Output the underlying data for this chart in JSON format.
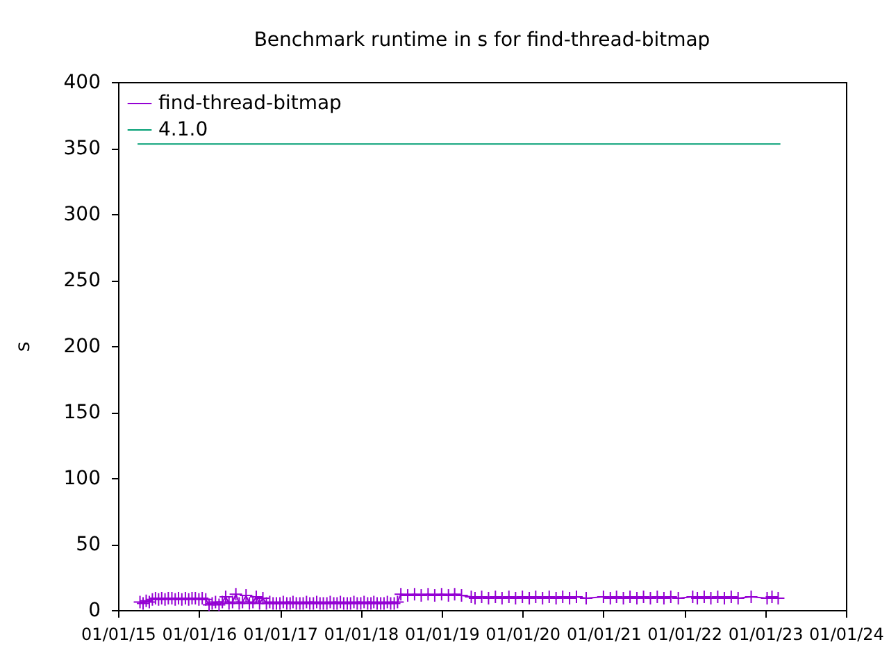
{
  "chart_data": {
    "type": "line",
    "title": "Benchmark runtime in s for find-thread-bitmap",
    "ylabel": "s",
    "legend": "top left",
    "grid": false,
    "xlim": [
      "2015-01-01",
      "2024-01-01"
    ],
    "xticks": [
      {
        "value": "2015-01-01",
        "label": "01/01/15"
      },
      {
        "value": "2016-01-01",
        "label": "01/01/16"
      },
      {
        "value": "2017-01-01",
        "label": "01/01/17"
      },
      {
        "value": "2018-01-01",
        "label": "01/01/18"
      },
      {
        "value": "2019-01-01",
        "label": "01/01/19"
      },
      {
        "value": "2020-01-01",
        "label": "01/01/20"
      },
      {
        "value": "2021-01-01",
        "label": "01/01/21"
      },
      {
        "value": "2022-01-01",
        "label": "01/01/22"
      },
      {
        "value": "2023-01-01",
        "label": "01/01/23"
      },
      {
        "value": "2024-01-01",
        "label": "01/01/24"
      }
    ],
    "ylim": [
      0,
      400
    ],
    "yticks": [
      0,
      50,
      100,
      150,
      200,
      250,
      300,
      350,
      400
    ],
    "series": [
      {
        "name": "find-thread-bitmap",
        "color": "#9400d3",
        "marker": "cross",
        "line_style": "solid",
        "x": [
          "2015-04-10",
          "2015-04-24",
          "2015-05-08",
          "2015-05-22",
          "2015-06-05",
          "2015-06-19",
          "2015-07-03",
          "2015-07-17",
          "2015-08-01",
          "2015-08-16",
          "2015-09-01",
          "2015-09-16",
          "2015-10-01",
          "2015-10-16",
          "2015-11-01",
          "2015-11-16",
          "2015-12-01",
          "2015-12-16",
          "2016-01-01",
          "2016-01-16",
          "2016-02-01",
          "2016-02-16",
          "2016-03-01",
          "2016-03-16",
          "2016-04-01",
          "2016-04-16",
          "2016-05-01",
          "2016-05-16",
          "2016-06-01",
          "2016-06-16",
          "2016-07-01",
          "2016-07-16",
          "2016-08-01",
          "2016-08-16",
          "2016-09-01",
          "2016-09-16",
          "2016-10-01",
          "2016-10-16",
          "2016-11-01",
          "2016-11-16",
          "2016-12-01",
          "2016-12-16",
          "2017-01-01",
          "2017-01-16",
          "2017-02-01",
          "2017-02-16",
          "2017-03-01",
          "2017-03-16",
          "2017-04-01",
          "2017-04-16",
          "2017-05-01",
          "2017-05-16",
          "2017-06-01",
          "2017-06-16",
          "2017-07-01",
          "2017-07-16",
          "2017-08-01",
          "2017-08-16",
          "2017-09-01",
          "2017-09-16",
          "2017-10-01",
          "2017-10-16",
          "2017-11-01",
          "2017-11-16",
          "2017-12-01",
          "2017-12-16",
          "2018-01-01",
          "2018-01-16",
          "2018-02-01",
          "2018-02-16",
          "2018-03-01",
          "2018-03-16",
          "2018-04-01",
          "2018-04-16",
          "2018-05-01",
          "2018-05-16",
          "2018-06-01",
          "2018-06-16",
          "2018-07-01",
          "2018-08-01",
          "2018-09-01",
          "2018-10-01",
          "2018-11-01",
          "2018-12-01",
          "2019-01-01",
          "2019-02-01",
          "2019-03-01",
          "2019-04-01",
          "2019-05-15",
          "2019-06-01",
          "2019-07-01",
          "2019-08-01",
          "2019-09-01",
          "2019-10-01",
          "2019-11-01",
          "2019-12-01",
          "2020-01-01",
          "2020-02-01",
          "2020-03-01",
          "2020-04-01",
          "2020-05-01",
          "2020-06-01",
          "2020-07-01",
          "2020-08-01",
          "2020-09-01",
          "2020-10-15",
          "2021-01-01",
          "2021-02-01",
          "2021-03-01",
          "2021-04-01",
          "2021-05-01",
          "2021-06-01",
          "2021-07-01",
          "2021-08-01",
          "2021-09-01",
          "2021-10-01",
          "2021-11-01",
          "2021-12-05",
          "2022-02-08",
          "2022-03-01",
          "2022-04-01",
          "2022-05-01",
          "2022-06-01",
          "2022-07-01",
          "2022-08-01",
          "2022-09-01",
          "2022-10-30",
          "2023-01-10",
          "2023-02-01",
          "2023-03-01"
        ],
        "values": [
          6,
          5,
          7,
          6,
          8,
          9,
          8,
          9,
          8,
          9,
          9,
          8,
          9,
          8,
          9,
          8,
          9,
          9,
          8,
          9,
          8,
          4,
          5,
          6,
          4,
          6,
          10,
          5,
          6,
          12,
          5,
          6,
          11,
          5,
          6,
          10,
          5,
          9,
          5,
          6,
          5,
          5,
          5,
          6,
          5,
          5,
          6,
          5,
          5,
          5,
          6,
          5,
          5,
          6,
          5,
          5,
          5,
          6,
          5,
          5,
          6,
          5,
          5,
          5,
          6,
          5,
          5,
          6,
          5,
          5,
          6,
          5,
          5,
          5,
          6,
          5,
          5,
          6,
          12,
          11,
          12,
          11,
          12,
          11,
          12,
          11,
          12,
          11,
          10,
          9,
          10,
          9,
          10,
          9,
          10,
          9,
          10,
          9,
          10,
          9,
          10,
          9,
          10,
          9,
          10,
          9,
          10,
          9,
          10,
          9,
          10,
          9,
          10,
          9,
          10,
          9,
          10,
          9,
          10,
          9,
          10,
          9,
          10,
          9,
          10,
          9,
          10,
          9,
          10,
          9
        ]
      },
      {
        "name": "4.1.0",
        "color": "#009e73",
        "marker": "none",
        "line_style": "solid",
        "x": [
          "2015-03-30",
          "2023-03-11"
        ],
        "values": [
          353,
          353
        ]
      }
    ]
  }
}
